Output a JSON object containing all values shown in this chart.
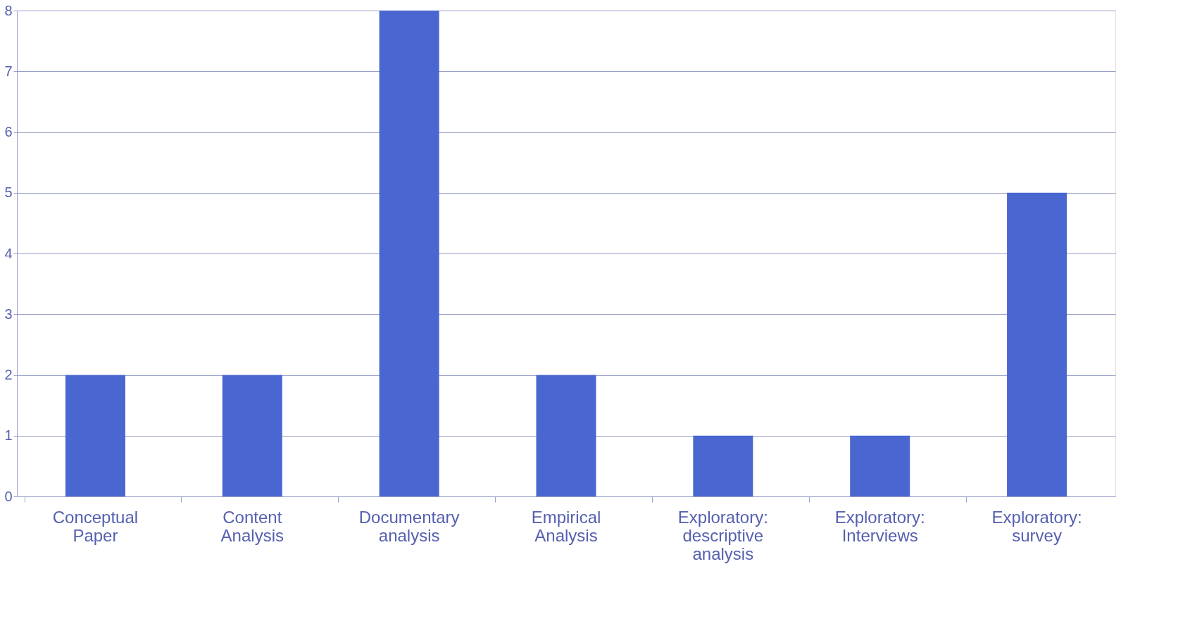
{
  "chart_data": {
    "type": "bar",
    "categories": [
      "Conceptual Paper",
      "Content Analysis",
      "Documentary analysis",
      "Empirical Analysis",
      "Exploratory: descriptive analysis",
      "Exploratory: Interviews",
      "Exploratory: survey"
    ],
    "values": [
      2,
      2,
      8,
      2,
      1,
      1,
      5
    ],
    "color": "#4a66d0",
    "ylim": [
      0,
      8
    ],
    "yticks": [
      0,
      1,
      2,
      3,
      4,
      5,
      6,
      7,
      8
    ],
    "grid": "y"
  }
}
